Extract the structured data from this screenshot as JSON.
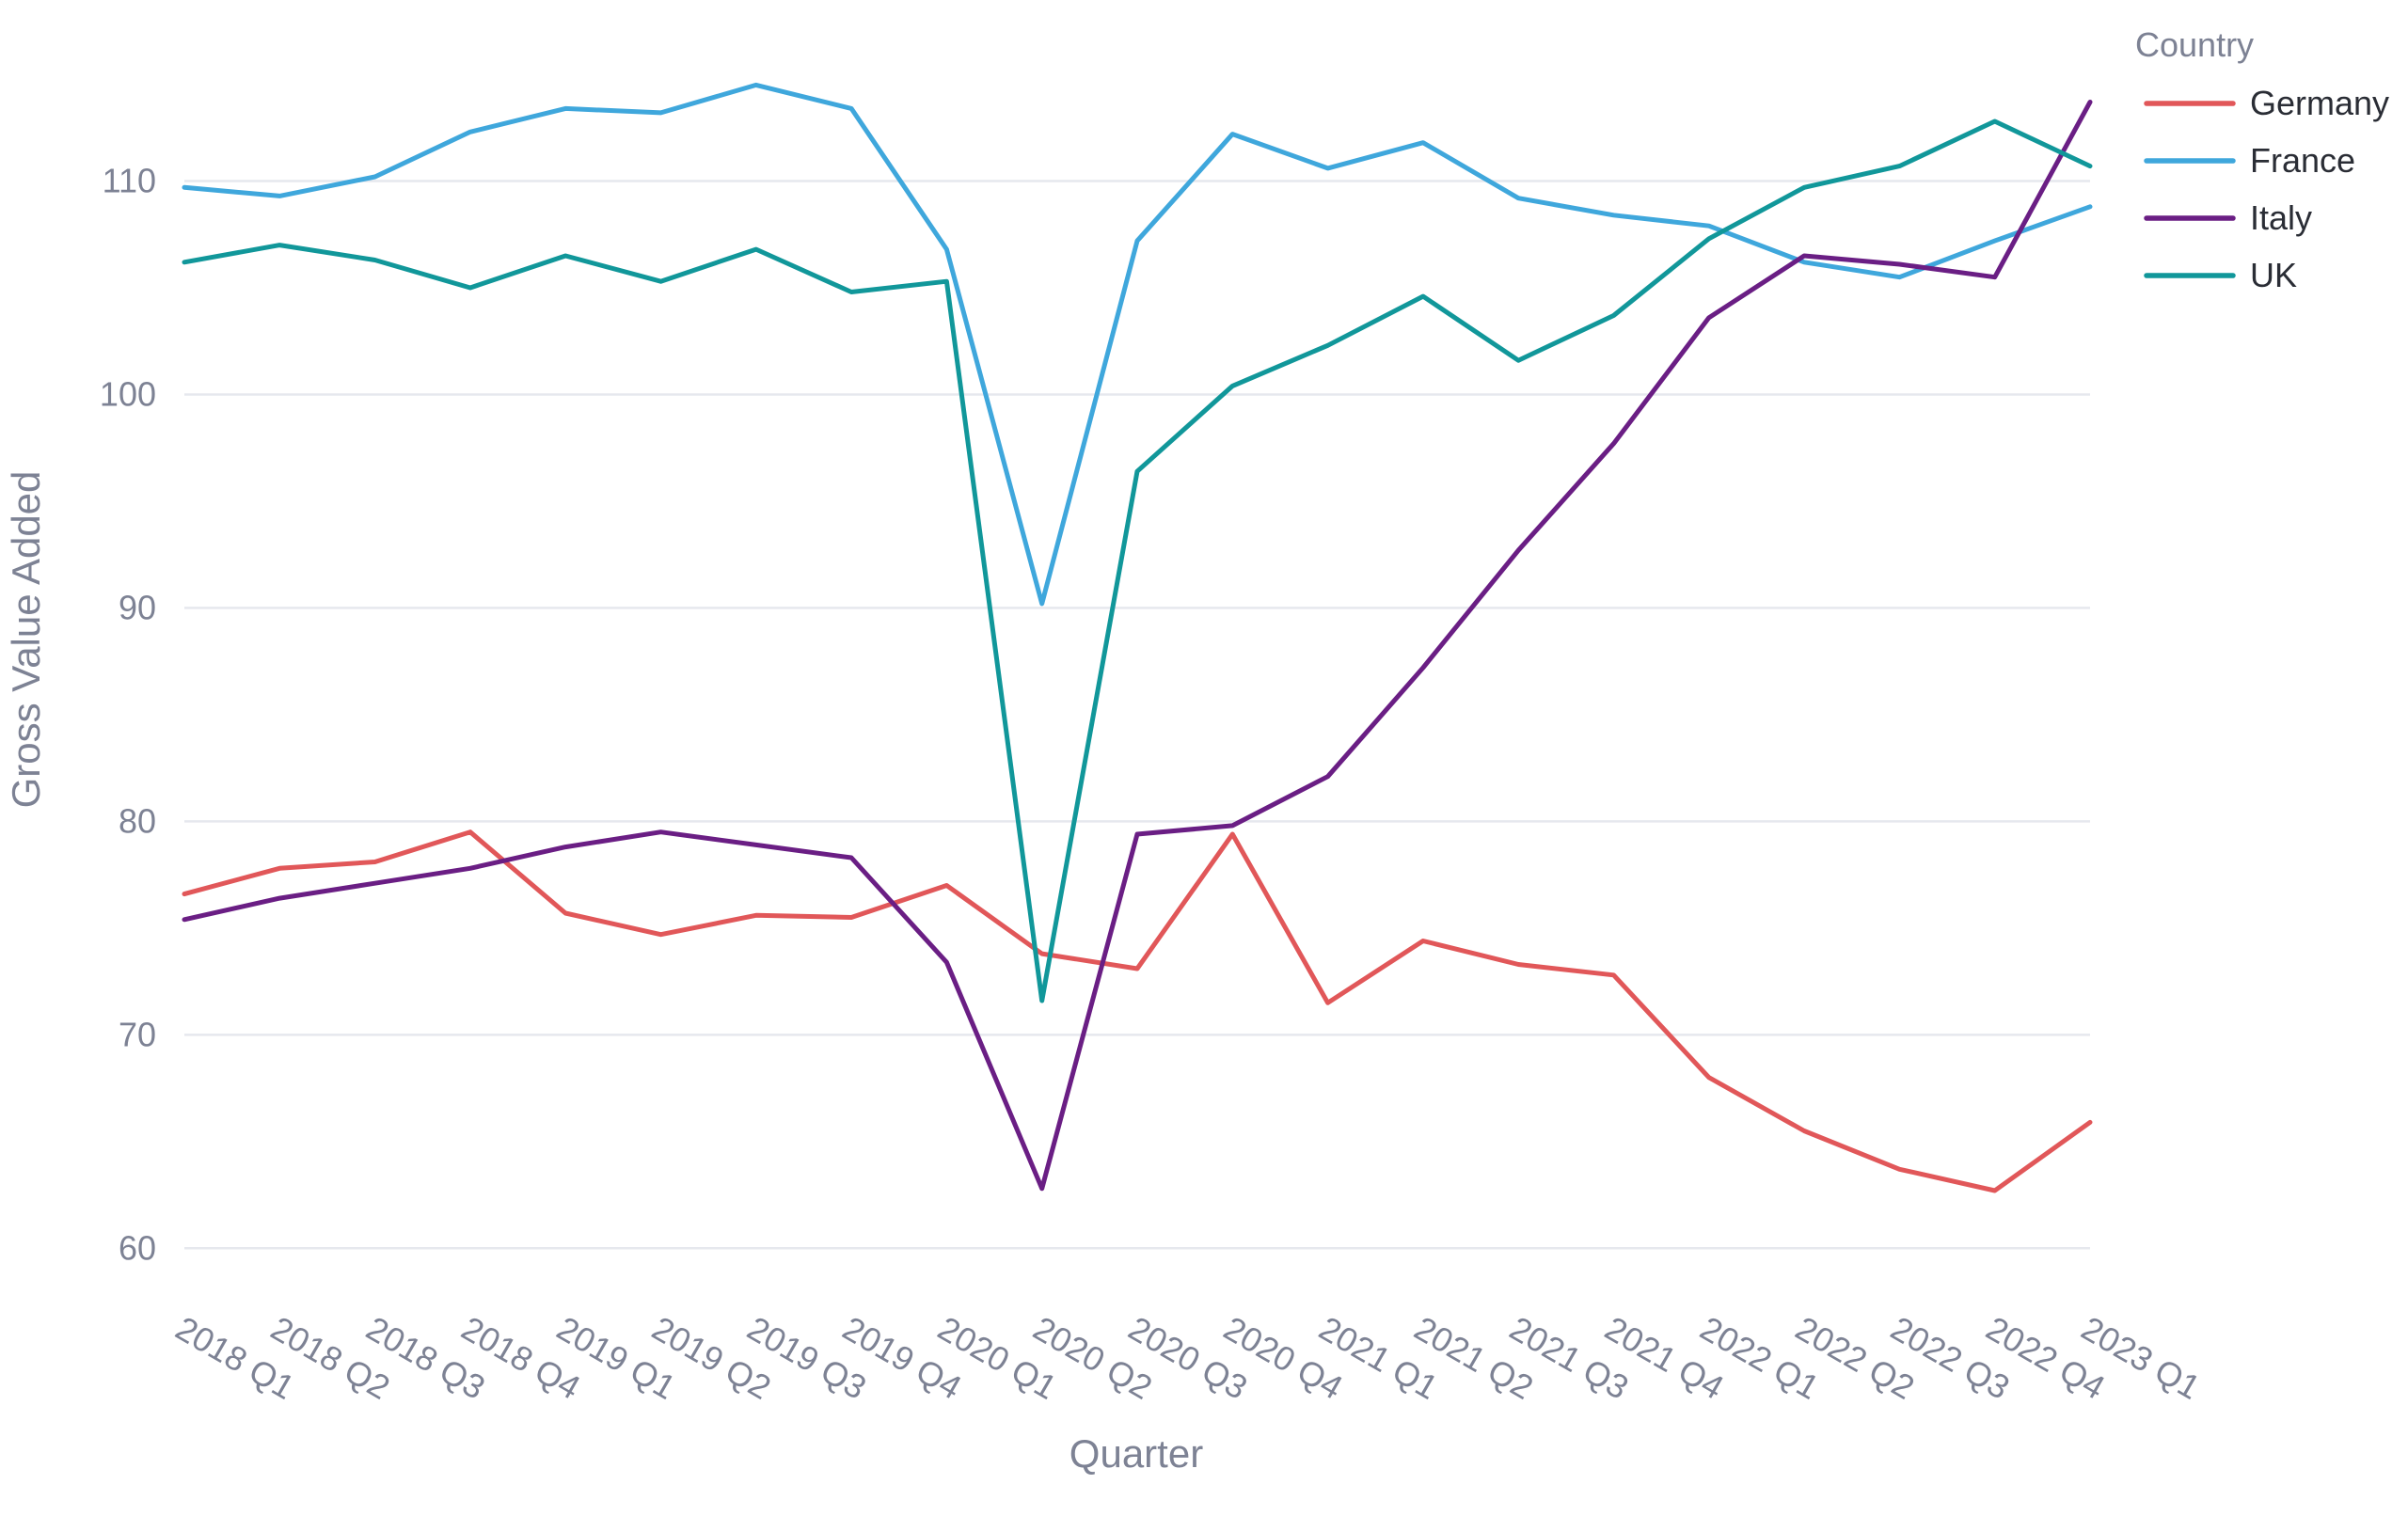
{
  "chart_data": {
    "type": "line",
    "title": "",
    "xlabel": "Quarter",
    "ylabel": "Gross Value Added",
    "ylim": [
      59,
      116.5
    ],
    "yticks": [
      60,
      70,
      80,
      90,
      100,
      110
    ],
    "grid": true,
    "legend": {
      "title": "Country",
      "position": "top-right"
    },
    "categories": [
      "2018 Q1",
      "2018 Q2",
      "2018 Q3",
      "2018 Q4",
      "2019 Q1",
      "2019 Q2",
      "2019 Q3",
      "2019 Q4",
      "2020 Q1",
      "2020 Q2",
      "2020 Q3",
      "2020 Q4",
      "2021 Q1",
      "2021 Q2",
      "2021 Q3",
      "2021 Q4",
      "2022 Q1",
      "2022 Q2",
      "2022 Q3",
      "2022 Q4",
      "2023 Q1"
    ],
    "series": [
      {
        "name": "Germany",
        "color": "#e15759",
        "values": [
          76.6,
          77.8,
          78.1,
          79.5,
          75.7,
          74.7,
          75.6,
          75.5,
          77.0,
          73.8,
          73.1,
          79.4,
          71.5,
          74.4,
          73.3,
          72.8,
          68.0,
          65.5,
          63.7,
          62.7,
          65.9
        ]
      },
      {
        "name": "France",
        "color": "#3fa7dc",
        "values": [
          109.7,
          109.3,
          110.2,
          112.3,
          113.4,
          113.2,
          114.5,
          113.4,
          106.8,
          90.2,
          107.2,
          112.2,
          110.6,
          111.8,
          109.2,
          108.4,
          107.9,
          106.2,
          105.5,
          107.2,
          108.8
        ]
      },
      {
        "name": "Italy",
        "color": "#6a1e84",
        "values": [
          75.4,
          76.4,
          77.1,
          77.8,
          78.8,
          79.5,
          78.9,
          78.3,
          73.4,
          62.8,
          79.4,
          79.8,
          82.1,
          87.2,
          92.7,
          97.7,
          103.6,
          106.5,
          106.1,
          105.5,
          113.7
        ]
      },
      {
        "name": "UK",
        "color": "#11979a",
        "values": [
          106.2,
          107.0,
          106.3,
          105.0,
          106.5,
          105.3,
          106.8,
          104.8,
          105.3,
          71.6,
          96.4,
          100.4,
          102.3,
          104.6,
          101.6,
          103.7,
          107.3,
          109.7,
          110.7,
          112.8,
          110.7
        ]
      }
    ]
  }
}
